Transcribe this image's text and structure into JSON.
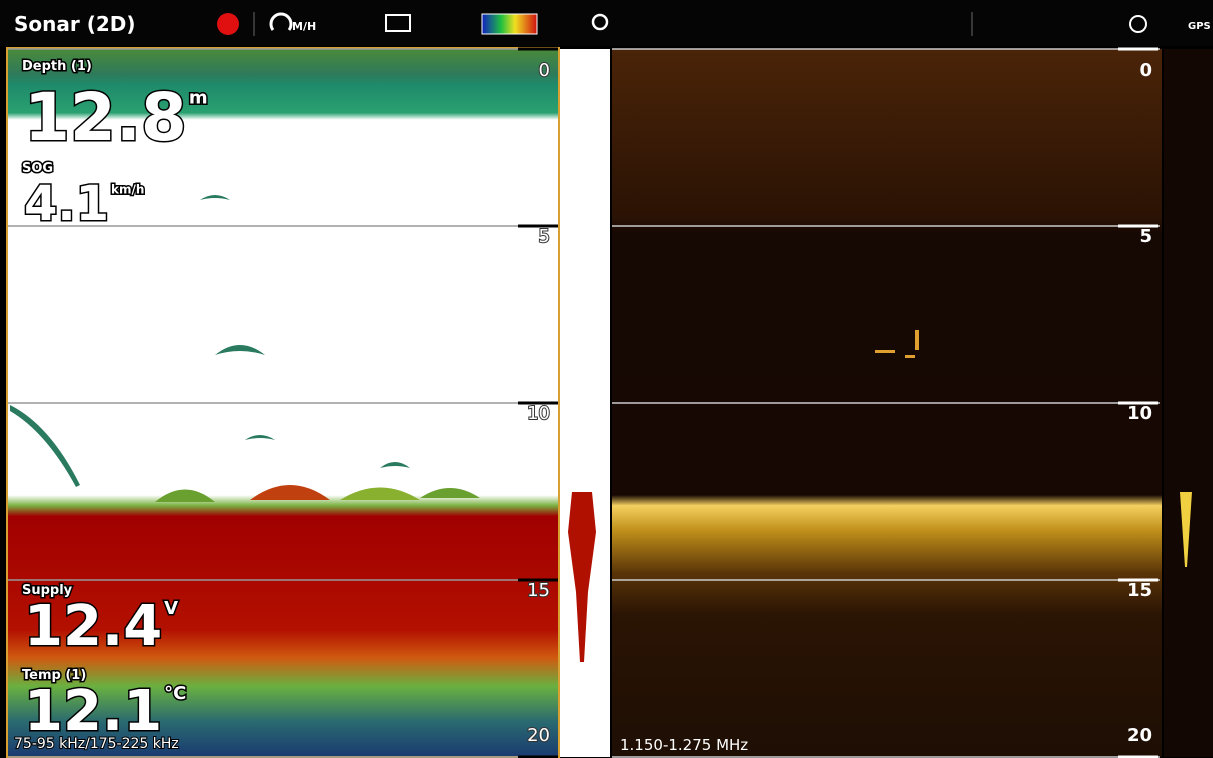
{
  "header": {
    "title": "Sonar (2D)",
    "speed_unit": "M/H",
    "gps": "GPS"
  },
  "left_panel": {
    "readouts": [
      {
        "label": "Depth (1)",
        "value": "12.8",
        "unit": "m"
      },
      {
        "label": "SOG",
        "value": "4.1",
        "unit": "km/h"
      },
      {
        "label": "Supply",
        "value": "12.4",
        "unit": "V"
      },
      {
        "label": "Temp (1)",
        "value": "12.1",
        "unit": "°C"
      }
    ],
    "frequency": "75-95 kHz/175-225 kHz"
  },
  "right_panel": {
    "frequency": "1.150-1.275 MHz"
  },
  "depth_scale": [
    0,
    5,
    10,
    15,
    20
  ]
}
